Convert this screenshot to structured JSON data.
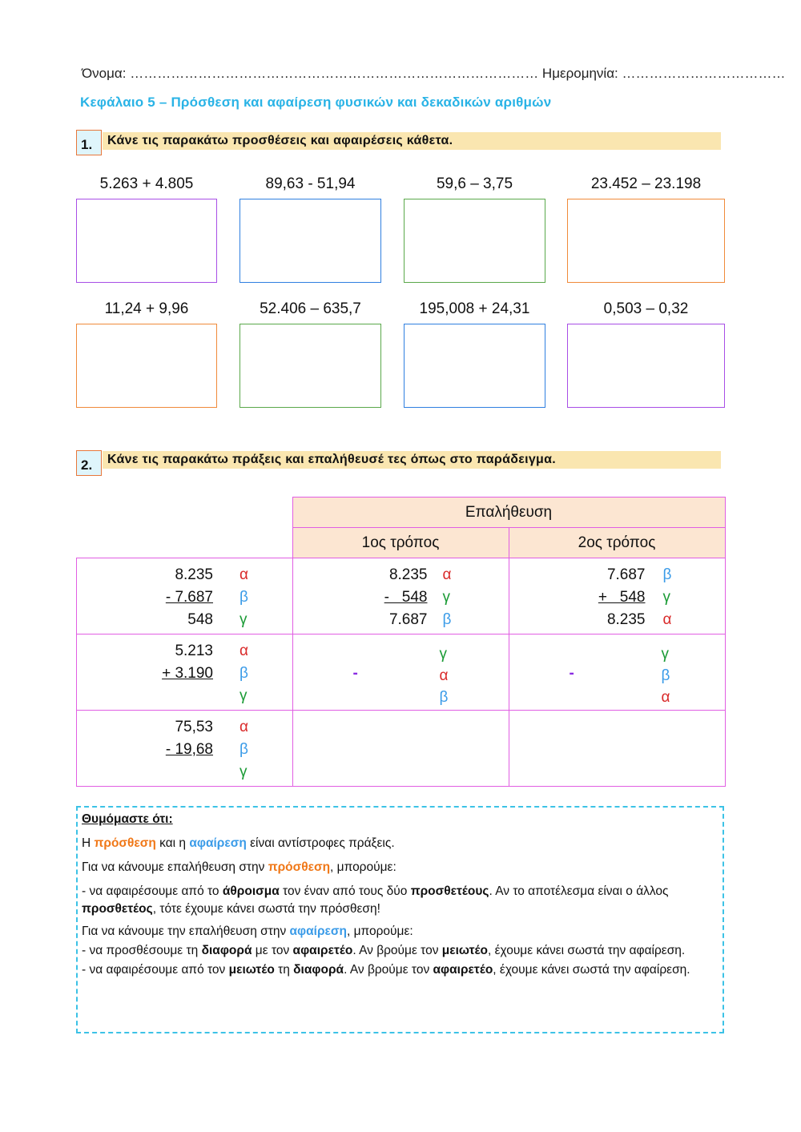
{
  "header": {
    "name_line": "Όνομα: ……………………………………………………………………………… Ημερομηνία: ………………………………"
  },
  "title": "Κεφάλαιο 5 – Πρόσθεση και αφαίρεση φυσικών και δεκαδικών αριθμών",
  "section1": {
    "number": "1.",
    "instruction": "Κάνε τις παρακάτω προσθέσεις και αφαιρέσεις κάθετα.",
    "exercises": [
      {
        "label": "5.263 + 4.805",
        "border": "#a84ee6"
      },
      {
        "label": "89,63 - 51,94",
        "border": "#2f7fe0"
      },
      {
        "label": "59,6 – 3,75",
        "border": "#5aa84a"
      },
      {
        "label": "23.452 – 23.198",
        "border": "#f08a3a"
      },
      {
        "label": "11,24 + 9,96",
        "border": "#f08a3a"
      },
      {
        "label": "52.406 – 635,7",
        "border": "#5aa84a"
      },
      {
        "label": "195,008 + 24,31",
        "border": "#2f7fe0"
      },
      {
        "label": "0,503 – 0,32",
        "border": "#a84ee6"
      }
    ]
  },
  "section2": {
    "number": "2.",
    "instruction": "Κάνε τις παρακάτω πράξεις και επαλήθευσέ τες όπως στο παράδειγμα.",
    "table": {
      "header": "Επαλήθευση",
      "col1": "1ος τρόπος",
      "col2": "2ος τρόπος",
      "rows": [
        {
          "op": [
            {
              "n": "8.235",
              "l": "α"
            },
            {
              "n": "- 7.687",
              "l": "β"
            },
            {
              "n": "548",
              "l": "γ"
            }
          ],
          "w1": [
            {
              "n": "8.235",
              "l": "α"
            },
            {
              "n": "-   548",
              "l": "γ"
            },
            {
              "n": "7.687",
              "l": "β"
            }
          ],
          "w2": [
            {
              "n": "7.687",
              "l": "β"
            },
            {
              "n": "+   548",
              "l": "γ"
            },
            {
              "n": "8.235",
              "l": "α"
            }
          ]
        },
        {
          "op": [
            {
              "n": "5.213",
              "l": "α"
            },
            {
              "n": "+ 3.190",
              "l": "β"
            },
            {
              "n": "",
              "l": "γ"
            }
          ],
          "w1": {
            "sign": "-",
            "letters": [
              "γ",
              "α",
              "β"
            ]
          },
          "w2": {
            "sign": "-",
            "letters": [
              "γ",
              "β",
              "α"
            ]
          }
        },
        {
          "op": [
            {
              "n": "75,53",
              "l": "α"
            },
            {
              "n": "- 19,68",
              "l": "β"
            },
            {
              "n": "",
              "l": "γ"
            }
          ]
        }
      ]
    }
  },
  "notes": {
    "paragraphs": [
      [
        {
          "t": "Θυμόμαστε ότι:",
          "s": "head"
        }
      ],
      [
        {
          "t": "Η "
        },
        {
          "t": "πρόσθεση",
          "s": "orange"
        },
        {
          "t": " και η "
        },
        {
          "t": "αφαίρεση",
          "s": "blue"
        },
        {
          "t": " είναι αντίστροφες πράξεις."
        }
      ],
      [
        {
          "t": "Για να κάνουμε επαλήθευση στην "
        },
        {
          "t": "πρόσθεση",
          "s": "orange"
        },
        {
          "t": ", μπορούμε:"
        }
      ],
      [
        {
          "t": "- να αφαιρέσουμε από το "
        },
        {
          "t": "άθροισμα",
          "s": "bold"
        },
        {
          "t": " τον έναν από τους δύο "
        },
        {
          "t": "προσθετέους",
          "s": "bold"
        },
        {
          "t": ". Αν το αποτέλεσμα είναι ο άλλος "
        },
        {
          "t": "προσθετέος",
          "s": "bold"
        },
        {
          "t": ", τότε έχουμε κάνει σωστά την πρόσθεση!"
        }
      ],
      [
        {
          "t": "Για να κάνουμε την επαλήθευση στην "
        },
        {
          "t": "αφαίρεση",
          "s": "blue"
        },
        {
          "t": ", μπορούμε:"
        }
      ],
      [
        {
          "t": "- να προσθέσουμε τη "
        },
        {
          "t": "διαφορά",
          "s": "bold"
        },
        {
          "t": " με τον "
        },
        {
          "t": "αφαιρετέο",
          "s": "bold"
        },
        {
          "t": ". Αν βρούμε τον "
        },
        {
          "t": "μειωτέο",
          "s": "bold"
        },
        {
          "t": ", έχουμε κάνει σωστά την αφαίρεση."
        }
      ],
      [
        {
          "t": "- να αφαιρέσουμε από τον "
        },
        {
          "t": "μειωτέο",
          "s": "bold"
        },
        {
          "t": " τη "
        },
        {
          "t": "διαφορά",
          "s": "bold"
        },
        {
          "t": ". Αν βρούμε τον "
        },
        {
          "t": "αφαιρετέο",
          "s": "bold"
        },
        {
          "t": ", έχουμε κάνει σωστά την αφαίρεση."
        }
      ]
    ]
  }
}
